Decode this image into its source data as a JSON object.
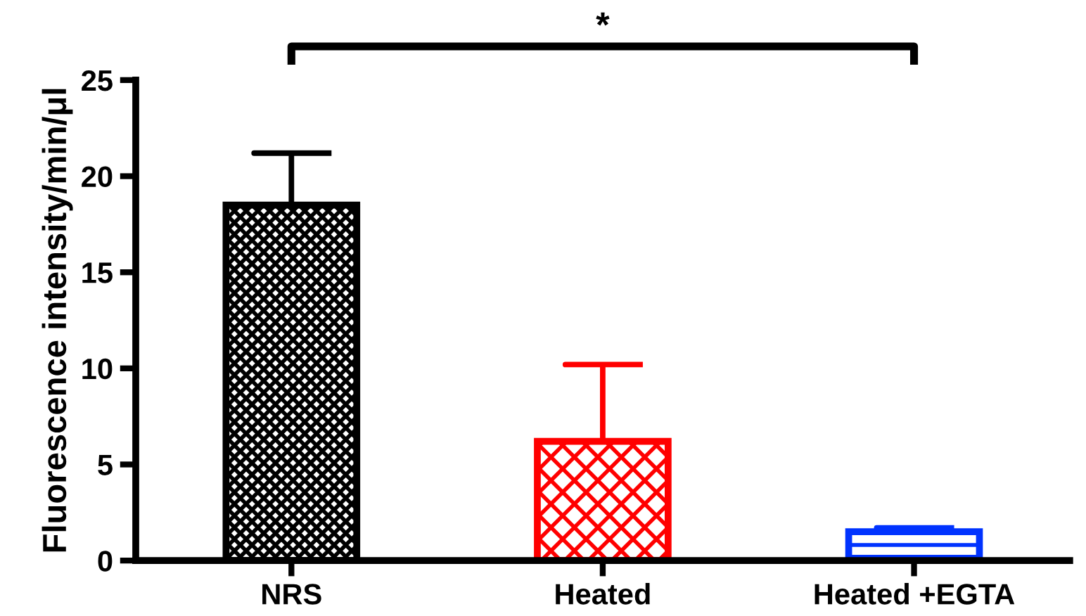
{
  "chart_data": {
    "type": "bar",
    "ylabel": "Fluorescence intensity/min/μl",
    "categories": [
      "NRS",
      "Heated",
      "Heated +EGTA"
    ],
    "values": [
      18.5,
      6.2,
      1.5
    ],
    "colors": [
      "#000000",
      "#ff0000",
      "#0033ff"
    ],
    "errors": [
      [
        18.5,
        21.2
      ],
      [
        6.2,
        10.2
      ],
      [
        1.5,
        1.7
      ]
    ],
    "ylim": [
      0,
      25
    ],
    "yticks": [
      0,
      5,
      10,
      15,
      20,
      25
    ],
    "grid": false,
    "legend": false,
    "annotations": [
      "*"
    ]
  }
}
